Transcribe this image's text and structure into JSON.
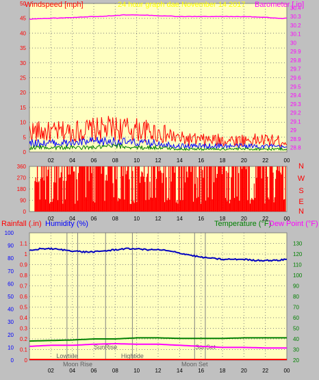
{
  "chart_data": [
    {
      "type": "line",
      "title": "24 hour graph dae   November 14 2017",
      "left_axis_label": "Windspeed [mph]",
      "right_axis_label": "Barometer [.in]",
      "x_ticks": [
        "02",
        "04",
        "06",
        "08",
        "10",
        "12",
        "14",
        "16",
        "18",
        "20",
        "22",
        "00"
      ],
      "left_ylim": [
        0,
        50
      ],
      "left_ticks": [
        "0",
        "5",
        "10",
        "15",
        "20",
        "25",
        "30",
        "35",
        "40",
        "45",
        "50"
      ],
      "right_ylim": [
        28.75,
        30.45
      ],
      "right_ticks": [
        "28.8",
        "28.9",
        "29",
        "29.1",
        "29.2",
        "29.3",
        "29.4",
        "29.5",
        "29.6",
        "29.7",
        "29.8",
        "29.9",
        "30",
        "30.1",
        "30.2",
        "30.3",
        "30.4"
      ],
      "grid": true,
      "series": [
        {
          "color": "#ff00ff",
          "axis": "right",
          "x": [
            0,
            2,
            4,
            6,
            8,
            9,
            10,
            12,
            14,
            16,
            18,
            20,
            22,
            23,
            24
          ],
          "y": [
            30.27,
            30.28,
            30.29,
            30.3,
            30.31,
            30.32,
            30.32,
            30.31,
            30.3,
            30.3,
            30.3,
            30.3,
            30.29,
            30.28,
            30.28
          ]
        },
        {
          "color": "#ff0000",
          "axis": "left",
          "kind": "gust",
          "x": [
            0,
            2,
            4,
            6,
            8,
            10,
            12,
            14,
            16,
            18,
            20,
            22,
            24
          ],
          "y": [
            7,
            6.5,
            7,
            7.5,
            8,
            7.5,
            6.5,
            4.5,
            4,
            4,
            4,
            4,
            3.5
          ]
        },
        {
          "color": "#0000ff",
          "axis": "left",
          "kind": "average",
          "x": [
            0,
            2,
            4,
            6,
            8,
            10,
            12,
            14,
            16,
            18,
            20,
            22,
            24
          ],
          "y": [
            3,
            3,
            3,
            3.5,
            3.5,
            3,
            3,
            2,
            2,
            2,
            2,
            2,
            1.5
          ]
        },
        {
          "color": "#008000",
          "axis": "left",
          "kind": "low",
          "x": [
            0,
            2,
            4,
            6,
            8,
            10,
            12,
            14,
            16,
            18,
            20,
            22,
            24
          ],
          "y": [
            1.5,
            1.5,
            1.5,
            1.5,
            2,
            1.5,
            1.5,
            1,
            1,
            1,
            1,
            1,
            1
          ]
        }
      ]
    },
    {
      "type": "bar",
      "left_ylim": [
        0,
        360
      ],
      "left_ticks": [
        "0",
        "90",
        "180",
        "270",
        "360"
      ],
      "right_labels": [
        "N",
        "W",
        "S",
        "E",
        "N"
      ],
      "color": "#ff0000",
      "note": "wind direction, degrees",
      "x_ticks": [
        "02",
        "04",
        "06",
        "08",
        "10",
        "12",
        "14",
        "16",
        "18",
        "20",
        "22",
        "00"
      ]
    },
    {
      "type": "line",
      "labels": {
        "rainfall": "Rainfall (.in)",
        "humidity": "Humidity (%)",
        "temperature": "Temperature (°F)",
        "dewpoint": "Dew Point (°F)"
      },
      "x_ticks": [
        "02",
        "04",
        "06",
        "08",
        "10",
        "12",
        "14",
        "16",
        "18",
        "20",
        "22",
        "00"
      ],
      "rain_ylim": [
        0,
        1.2
      ],
      "rain_ticks": [
        "0",
        "0.1",
        "0.2",
        "0.3",
        "0.4",
        "0.5",
        "0.6",
        "0.7",
        "0.8",
        "0.9",
        "1",
        "1.1"
      ],
      "humidity_ylim": [
        0,
        100
      ],
      "humidity_ticks": [
        "0",
        "10",
        "20",
        "30",
        "40",
        "50",
        "60",
        "70",
        "80",
        "90",
        "100"
      ],
      "temp_ylim": [
        20,
        140
      ],
      "temp_ticks": [
        "20",
        "30",
        "40",
        "50",
        "60",
        "70",
        "80",
        "90",
        "100",
        "110",
        "120",
        "130"
      ],
      "grid": true,
      "series": [
        {
          "color": "#0000c0",
          "axis": "temp",
          "kind": "temperature",
          "x": [
            0,
            1,
            2,
            3,
            4,
            5,
            6,
            7,
            8,
            9,
            10,
            11,
            12,
            13,
            14,
            15,
            16,
            17,
            18,
            19,
            20,
            21,
            22,
            23,
            24
          ],
          "y": [
            123,
            125,
            125,
            124,
            123,
            122,
            122,
            123,
            124,
            125,
            125,
            124,
            124,
            123,
            121,
            119,
            117,
            116,
            115,
            115,
            115,
            114,
            114,
            114,
            115
          ]
        },
        {
          "color": "#008000",
          "axis": "temp",
          "kind": "dewpoint",
          "x": [
            0,
            2,
            4,
            6,
            8,
            10,
            12,
            14,
            16,
            18,
            20,
            22,
            24
          ],
          "y": [
            38,
            38.5,
            39,
            40,
            40,
            41,
            41,
            40.5,
            40.5,
            40.5,
            41,
            41,
            41
          ]
        },
        {
          "color": "#ff00ff",
          "axis": "temp",
          "kind": "other",
          "x": [
            0,
            2,
            4,
            6,
            8,
            10,
            12,
            14,
            16,
            18,
            20,
            22,
            24
          ],
          "y": [
            33,
            34,
            34,
            35,
            35.5,
            35,
            35,
            34,
            33,
            32,
            32,
            31.5,
            31.5
          ]
        }
      ],
      "rain_value": 0,
      "events": [
        {
          "label": "Lowtide",
          "hour": 3.5,
          "row": 1
        },
        {
          "label": "Moon Rise",
          "hour": 4.5,
          "row": 0
        },
        {
          "label": "SunRise",
          "hour": 7.1,
          "row": 2
        },
        {
          "label": "Hightide",
          "hour": 9.6,
          "row": 1
        },
        {
          "label": "Moon Set",
          "hour": 15.4,
          "row": 0
        },
        {
          "label": "SunSet",
          "hour": 16.4,
          "row": 2
        }
      ]
    }
  ]
}
